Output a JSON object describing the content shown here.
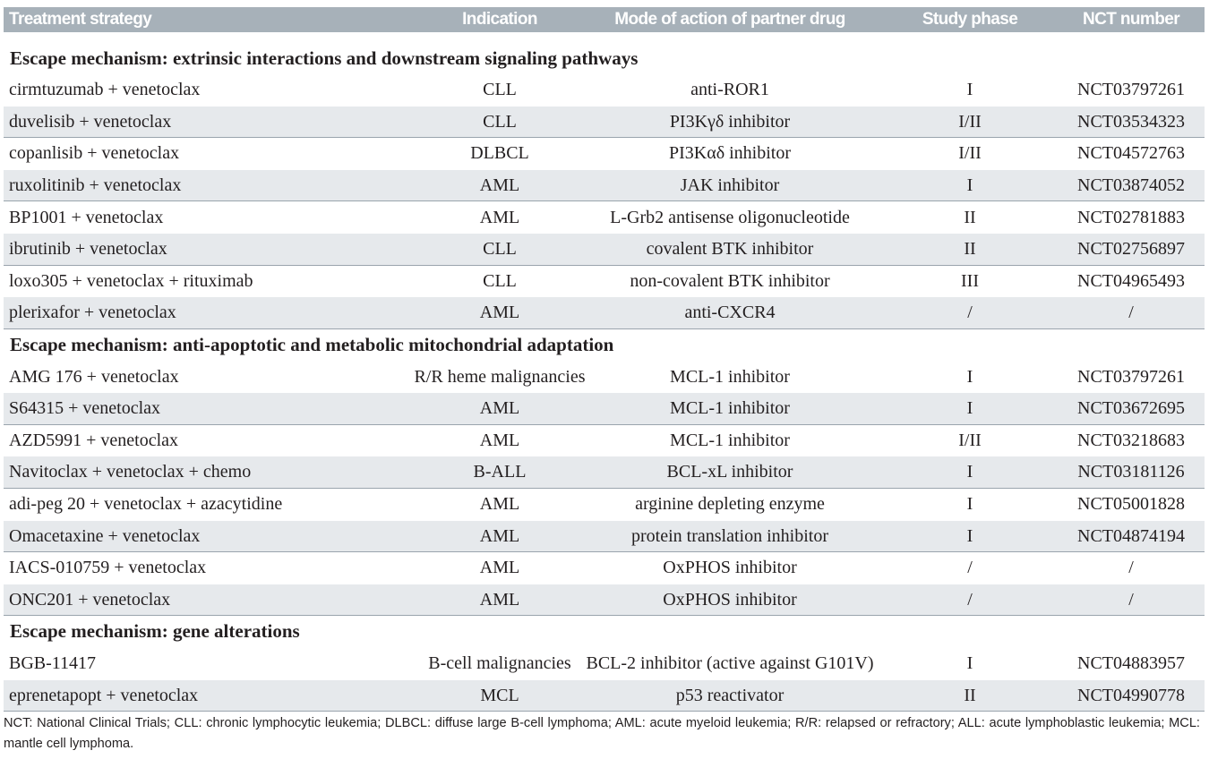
{
  "table": {
    "header": [
      "Treatment strategy",
      "Indication",
      "Mode of action of partner drug",
      "Study phase",
      "NCT number"
    ],
    "sections": [
      {
        "title": "Escape mechanism: extrinsic interactions and downstream signaling pathways",
        "rows": [
          [
            "cirmtuzumab + venetoclax",
            "CLL",
            "anti-ROR1",
            "I",
            "NCT03797261"
          ],
          [
            "duvelisib + venetoclax",
            "CLL",
            "PI3Kγδ inhibitor",
            "I/II",
            "NCT03534323"
          ],
          [
            "copanlisib + venetoclax",
            "DLBCL",
            "PI3Kαδ inhibitor",
            "I/II",
            "NCT04572763"
          ],
          [
            "ruxolitinib + venetoclax",
            "AML",
            "JAK inhibitor",
            "I",
            "NCT03874052"
          ],
          [
            "BP1001 + venetoclax",
            "AML",
            "L-Grb2 antisense oligonucleotide",
            "II",
            "NCT02781883"
          ],
          [
            "ibrutinib + venetoclax",
            "CLL",
            "covalent BTK inhibitor",
            "II",
            "NCT02756897"
          ],
          [
            "loxo305 + venetoclax + rituximab",
            "CLL",
            "non-covalent BTK inhibitor",
            "III",
            "NCT04965493"
          ],
          [
            "plerixafor + venetoclax",
            "AML",
            "anti-CXCR4",
            "/",
            "/"
          ]
        ]
      },
      {
        "title": "Escape mechanism: anti-apoptotic and metabolic mitochondrial adaptation",
        "rows": [
          [
            "AMG 176 + venetoclax",
            "R/R heme malignancies",
            "MCL-1 inhibitor",
            "I",
            "NCT03797261"
          ],
          [
            "S64315 + venetoclax",
            "AML",
            "MCL-1 inhibitor",
            "I",
            "NCT03672695"
          ],
          [
            "AZD5991 + venetoclax",
            "AML",
            "MCL-1 inhibitor",
            "I/II",
            "NCT03218683"
          ],
          [
            "Navitoclax + venetoclax + chemo",
            "B-ALL",
            "BCL-xL inhibitor",
            "I",
            "NCT03181126"
          ],
          [
            "adi-peg 20 + venetoclax + azacytidine",
            "AML",
            "arginine depleting enzyme",
            "I",
            "NCT05001828"
          ],
          [
            "Omacetaxine + venetoclax",
            "AML",
            "protein translation inhibitor",
            "I",
            "NCT04874194"
          ],
          [
            "IACS-010759 + venetoclax",
            "AML",
            "OxPHOS inhibitor",
            "/",
            "/"
          ],
          [
            "ONC201 + venetoclax",
            "AML",
            "OxPHOS inhibitor",
            "/",
            "/"
          ]
        ]
      },
      {
        "title": "Escape mechanism: gene alterations",
        "rows": [
          [
            "BGB-11417",
            "B-cell malignancies",
            "BCL-2 inhibitor (active against G101V)",
            "I",
            "NCT04883957"
          ],
          [
            "eprenetapopt + venetoclax",
            "MCL",
            "p53 reactivator",
            "II",
            "NCT04990778"
          ]
        ]
      }
    ]
  },
  "footnote": "NCT: National Clinical Trials; CLL: chronic lymphocytic leukemia; DLBCL: diffuse large B-cell lymphoma; AML: acute myeloid leukemia; R/R: relapsed or refractory; ALL: acute lymphoblastic leukemia; MCL: mantle cell lymphoma."
}
